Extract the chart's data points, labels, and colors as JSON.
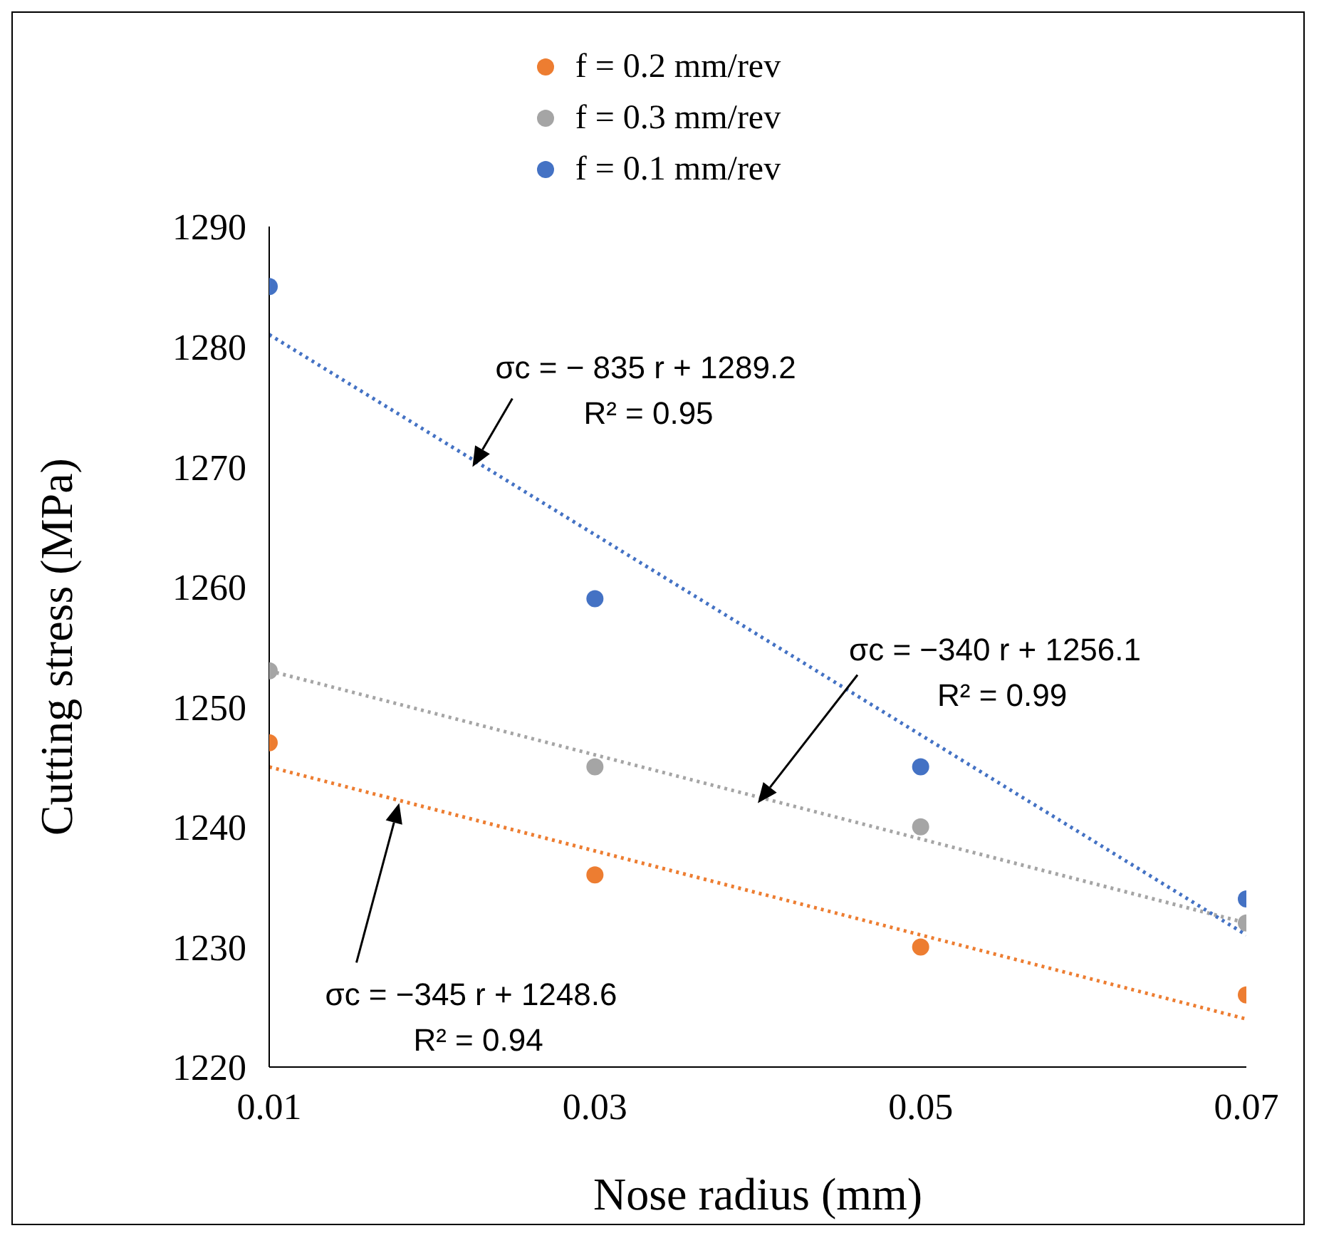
{
  "chart_data": {
    "type": "scatter",
    "xlabel": "Nose radius (mm)",
    "ylabel": "Cutting stress (MPa)",
    "xlim": [
      0.01,
      0.07
    ],
    "xticks": [
      0.01,
      0.03,
      0.05,
      0.07
    ],
    "ylim": [
      1220,
      1290
    ],
    "yticks": [
      1220,
      1230,
      1240,
      1250,
      1260,
      1270,
      1280,
      1290
    ],
    "grid": false,
    "legend": "top",
    "marker": "circle",
    "series": [
      {
        "name": "f = 0.2 mm/rev",
        "color": "#ed7d31",
        "x": [
          0.01,
          0.03,
          0.05,
          0.07
        ],
        "values": [
          1247,
          1236,
          1230,
          1226
        ]
      },
      {
        "name": "f = 0.3 mm/rev",
        "color": "#a5a5a5",
        "x": [
          0.01,
          0.03,
          0.05,
          0.07
        ],
        "values": [
          1253,
          1245,
          1240,
          1232
        ]
      },
      {
        "name": "f = 0.1 mm/rev",
        "color": "#4472c4",
        "x": [
          0.01,
          0.03,
          0.05,
          0.07
        ],
        "values": [
          1285,
          1259,
          1245,
          1234
        ]
      },
      {
        "type": "line",
        "color": "#ed7d31",
        "line_style": "dotted",
        "marker": "none",
        "x": [
          0.01,
          0.07
        ],
        "values": [
          1245,
          1224
        ]
      },
      {
        "type": "line",
        "color": "#a5a5a5",
        "line_style": "dotted",
        "marker": "none",
        "x": [
          0.01,
          0.07
        ],
        "values": [
          1253,
          1232
        ]
      },
      {
        "type": "line",
        "color": "#4472c4",
        "line_style": "dotted",
        "marker": "none",
        "x": [
          0.01,
          0.07
        ],
        "values": [
          1281,
          1231
        ]
      }
    ],
    "annotations": [
      "σc = − 835 r + 1289.2\nR² =  0.95",
      "σc = −340 r + 1256.1\nR² = 0.99",
      "σc = −345 r + 1248.6\nR² = 0.94"
    ]
  }
}
